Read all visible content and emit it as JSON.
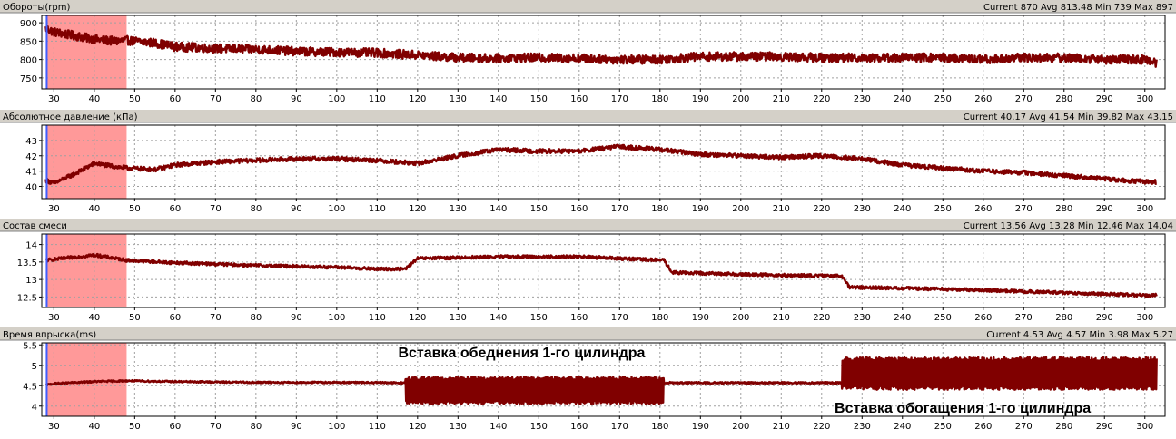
{
  "colors": {
    "background": "#ffffff",
    "header_bg": "#d4d0c8",
    "trace": "#800000",
    "highlight": "#ff9999",
    "cursor": "#3f5fff",
    "grid": "#a0a0a0"
  },
  "x_ticks": [
    30,
    40,
    50,
    60,
    70,
    80,
    90,
    100,
    110,
    120,
    130,
    140,
    150,
    160,
    170,
    180,
    190,
    200,
    210,
    220,
    230,
    240,
    250,
    260,
    270,
    280,
    290,
    300
  ],
  "chart_data": [
    {
      "type": "line",
      "title": "Обороты(rpm)",
      "stats": "Current 870 Avg 813.48 Min 739 Max 897",
      "xlim": [
        27,
        305
      ],
      "ylim": [
        720,
        920
      ],
      "yticks": [
        "900",
        "850",
        "800",
        "750"
      ],
      "highlight_x": [
        28,
        48
      ],
      "cursor_x": 28,
      "grid": true,
      "series": [
        {
          "x": [
            28,
            30,
            35,
            40,
            45,
            48,
            55,
            60,
            70,
            80,
            90,
            100,
            110,
            120,
            130,
            140,
            150,
            160,
            170,
            180,
            190,
            200,
            210,
            220,
            230,
            240,
            250,
            260,
            270,
            280,
            290,
            300,
            303
          ],
          "values": [
            885,
            875,
            865,
            855,
            850,
            852,
            845,
            835,
            830,
            828,
            822,
            820,
            818,
            812,
            805,
            803,
            805,
            803,
            800,
            800,
            808,
            808,
            808,
            805,
            805,
            805,
            805,
            800,
            805,
            805,
            800,
            800,
            790
          ],
          "noise": 12
        }
      ]
    },
    {
      "type": "line",
      "title": "Абсолютное давление (кПа)",
      "stats": "Current 40.17 Avg 41.54 Min 39.82 Max 43.15",
      "xlim": [
        27,
        305
      ],
      "ylim": [
        39.2,
        44.0
      ],
      "yticks": [
        "43",
        "42",
        "41",
        "40"
      ],
      "highlight_x": [
        28,
        48
      ],
      "cursor_x": 28,
      "grid": true,
      "series": [
        {
          "x": [
            28,
            30,
            35,
            40,
            45,
            48,
            55,
            60,
            70,
            80,
            90,
            100,
            110,
            120,
            130,
            140,
            150,
            160,
            170,
            180,
            190,
            200,
            210,
            220,
            230,
            240,
            250,
            260,
            270,
            280,
            290,
            300,
            303
          ],
          "values": [
            40.4,
            40.2,
            40.8,
            41.5,
            41.3,
            41.2,
            41.1,
            41.4,
            41.6,
            41.7,
            41.8,
            41.8,
            41.7,
            41.5,
            42.0,
            42.4,
            42.3,
            42.3,
            42.6,
            42.4,
            42.1,
            42.0,
            41.9,
            42.0,
            41.8,
            41.4,
            41.2,
            41.0,
            40.9,
            40.7,
            40.5,
            40.3,
            40.3
          ],
          "noise": 0.14
        }
      ]
    },
    {
      "type": "line",
      "title": "Состав смеси",
      "stats": "Current 13.56 Avg 13.28 Min 12.46 Max 14.04",
      "xlim": [
        27,
        305
      ],
      "ylim": [
        12.2,
        14.3
      ],
      "yticks": [
        "14",
        "13.5",
        "13",
        "12.5"
      ],
      "highlight_x": [
        28,
        48
      ],
      "cursor_x": 28,
      "grid": true,
      "series": [
        {
          "x": [
            28,
            40,
            48,
            60,
            80,
            100,
            110,
            117,
            120,
            140,
            160,
            181,
            183,
            200,
            210,
            225,
            227,
            240,
            260,
            280,
            300,
            303
          ],
          "values": [
            13.55,
            13.7,
            13.55,
            13.48,
            13.4,
            13.35,
            13.3,
            13.3,
            13.6,
            13.65,
            13.65,
            13.55,
            13.2,
            13.15,
            13.12,
            13.1,
            12.78,
            12.75,
            12.7,
            12.62,
            12.55,
            12.55
          ],
          "noise": 0.045
        }
      ]
    },
    {
      "type": "line",
      "title": "Время впрыска(ms)",
      "stats": "Current 4.53 Avg 4.57 Min 3.98 Max 5.27",
      "xlim": [
        27,
        305
      ],
      "ylim": [
        3.75,
        5.55
      ],
      "yticks": [
        "5.5",
        "5",
        "4.5",
        "4"
      ],
      "highlight_x": [
        28,
        48
      ],
      "cursor_x": 28,
      "grid": true,
      "series": [
        {
          "x": [
            28,
            30,
            40,
            48,
            60,
            80,
            100,
            117,
            181,
            200,
            225,
            303
          ],
          "values": [
            4.52,
            4.55,
            4.6,
            4.62,
            4.6,
            4.58,
            4.58,
            4.57,
            4.57,
            4.57,
            4.57,
            4.55
          ],
          "noise": 0.02,
          "bands": [
            {
              "from": 117,
              "to": 181,
              "low": 4.05,
              "high": 4.72
            },
            {
              "from": 225,
              "to": 303,
              "low": 4.4,
              "high": 5.2
            }
          ]
        }
      ],
      "annotations": [
        {
          "text": "Вставка обеднения 1-го цилиндра",
          "x": 117
        },
        {
          "text": "Вставка обогащения 1-го цилиндра",
          "x": 225
        }
      ]
    }
  ]
}
